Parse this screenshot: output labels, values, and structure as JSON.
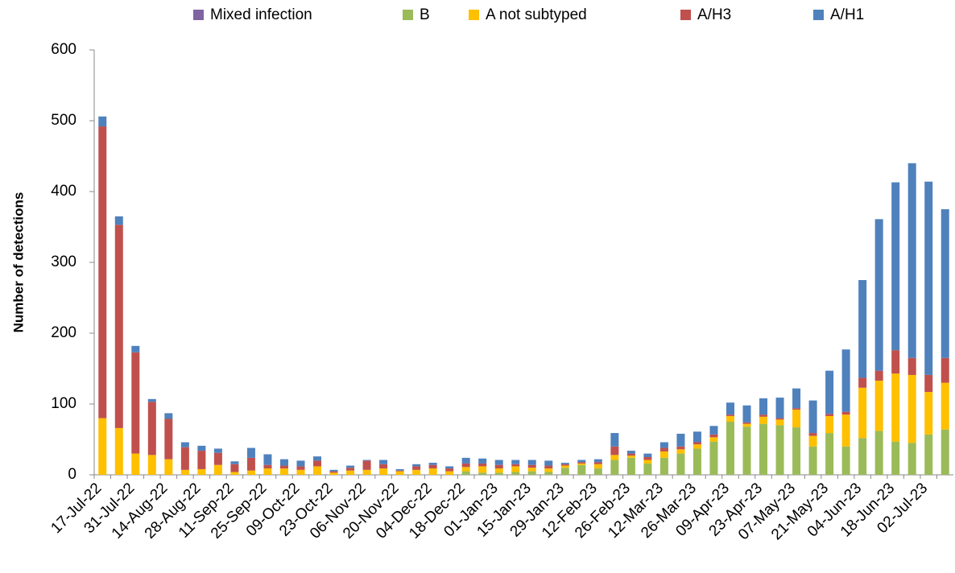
{
  "chart_data": {
    "type": "stacked_bar",
    "ylabel": "Number of detections",
    "categories": [
      "17-Jul-22",
      null,
      "31-Jul-22",
      null,
      "14-Aug-22",
      null,
      "28-Aug-22",
      null,
      "11-Sep-22",
      null,
      "25-Sep-22",
      null,
      "09-Oct-22",
      null,
      "23-Oct-22",
      null,
      "06-Nov-22",
      null,
      "20-Nov-22",
      null,
      "04-Dec-22",
      null,
      "18-Dec-22",
      null,
      "01-Jan-23",
      null,
      "15-Jan-23",
      null,
      "29-Jan-23",
      null,
      "12-Feb-23",
      null,
      "26-Feb-23",
      null,
      "12-Mar-23",
      null,
      "26-Mar-23",
      null,
      "09-Apr-23",
      null,
      "23-Apr-23",
      null,
      "07-May-23",
      null,
      "21-May-23",
      null,
      "04-Jun-23",
      null,
      "18-Jun-23",
      null,
      "02-Jul-23",
      null
    ],
    "series": [
      {
        "name": "Mixed infection",
        "color": "#8064a2",
        "values": [
          0,
          0,
          0,
          0,
          0,
          0,
          0,
          0,
          0,
          0,
          0,
          0,
          0,
          0,
          0,
          0,
          0,
          0,
          0,
          0,
          0,
          0,
          0,
          0,
          0,
          0,
          0,
          0,
          0,
          0,
          0,
          0,
          0,
          0,
          0,
          0,
          0,
          0,
          0,
          0,
          0,
          0,
          0,
          0,
          0,
          0,
          0,
          0,
          0,
          0,
          0,
          0
        ]
      },
      {
        "name": "B",
        "color": "#9bbb59",
        "values": [
          0,
          0,
          0,
          0,
          0,
          0,
          0,
          0,
          0,
          0,
          0,
          0,
          0,
          0,
          0,
          0,
          0,
          0,
          0,
          0,
          0,
          0,
          5,
          3,
          3,
          4,
          5,
          4,
          10,
          14,
          9,
          21,
          24,
          16,
          24,
          30,
          37,
          47,
          75,
          68,
          72,
          70,
          67,
          40,
          59,
          40,
          52,
          62,
          47,
          45,
          57,
          64
        ]
      },
      {
        "name": "A not subtyped",
        "color": "#ffc000",
        "values": [
          80,
          66,
          30,
          28,
          22,
          7,
          8,
          14,
          4,
          6,
          9,
          9,
          7,
          12,
          3,
          6,
          7,
          9,
          5,
          7,
          9,
          5,
          6,
          9,
          6,
          8,
          5,
          5,
          3,
          2,
          6,
          7,
          3,
          5,
          9,
          6,
          6,
          6,
          8,
          4,
          10,
          8,
          25,
          15,
          24,
          45,
          71,
          71,
          96,
          96,
          60,
          66
        ]
      },
      {
        "name": "A/H3",
        "color": "#c0504d",
        "values": [
          412,
          287,
          143,
          75,
          57,
          32,
          26,
          17,
          11,
          18,
          5,
          4,
          5,
          8,
          2,
          4,
          13,
          6,
          1,
          5,
          5,
          4,
          5,
          4,
          5,
          3,
          4,
          4,
          2,
          2,
          3,
          12,
          3,
          4,
          5,
          4,
          3,
          4,
          2,
          2,
          3,
          2,
          2,
          4,
          3,
          4,
          14,
          14,
          33,
          24,
          24,
          35
        ]
      },
      {
        "name": "A/H1",
        "color": "#4f81bd",
        "values": [
          14,
          12,
          9,
          4,
          8,
          7,
          7,
          6,
          4,
          14,
          15,
          9,
          8,
          6,
          2,
          3,
          1,
          6,
          2,
          3,
          3,
          3,
          8,
          7,
          7,
          6,
          7,
          7,
          2,
          3,
          4,
          19,
          4,
          5,
          8,
          18,
          15,
          12,
          17,
          24,
          23,
          29,
          28,
          46,
          61,
          88,
          138,
          214,
          237,
          275,
          273,
          210
        ]
      }
    ],
    "ylim": [
      0,
      600
    ],
    "yticks": [
      0,
      100,
      200,
      300,
      400,
      500,
      600
    ],
    "grid": false,
    "legend": "top"
  }
}
